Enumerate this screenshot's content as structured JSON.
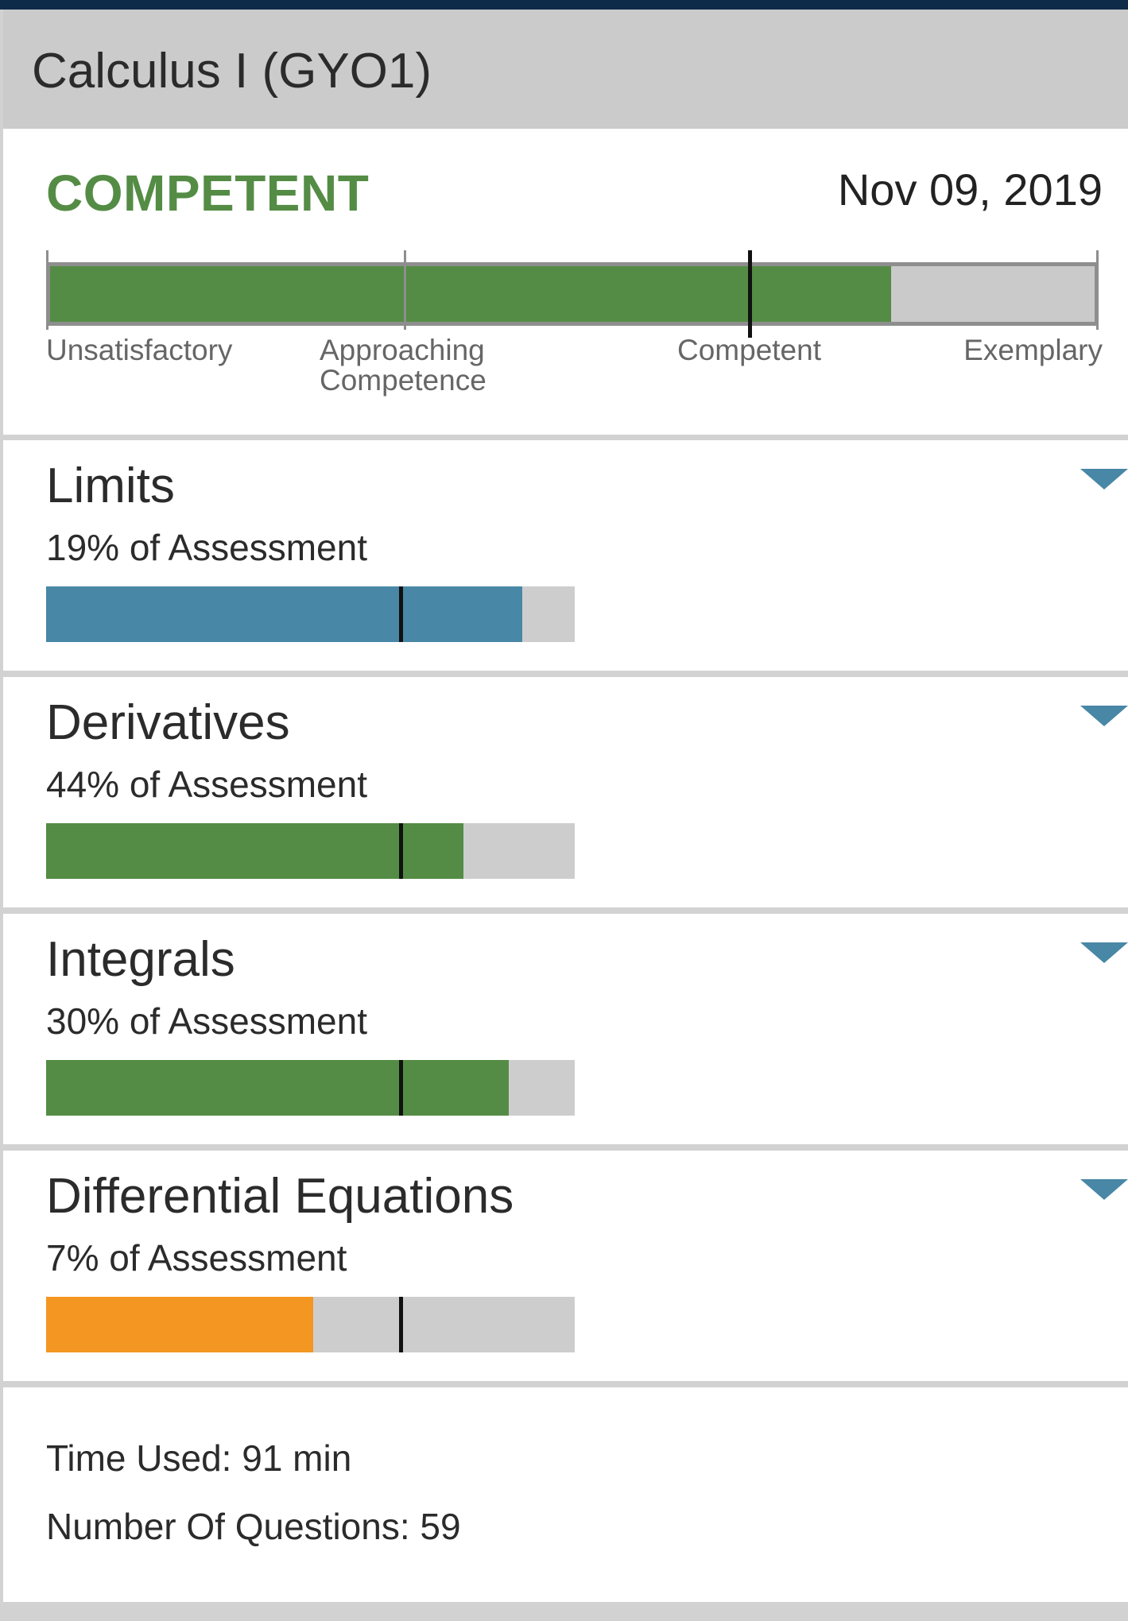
{
  "header": {
    "title": "Calculus I (GYO1)"
  },
  "summary": {
    "status": "COMPETENT",
    "date": "Nov 09, 2019",
    "status_color": "#548c45",
    "overall_score_fraction": 0.805,
    "competent_marker_fraction": 0.67,
    "scale_labels": {
      "unsatisfactory": "Unsatisfactory",
      "approaching": "Approaching Competence",
      "competent": "Competent",
      "exemplary": "Exemplary"
    }
  },
  "sections": [
    {
      "title": "Limits",
      "percent_label": "19% of Assessment",
      "score_fraction": 0.9,
      "bar_color": "#4887a6",
      "expand_icon": "chevron-down-icon"
    },
    {
      "title": "Derivatives",
      "percent_label": "44% of Assessment",
      "score_fraction": 0.79,
      "bar_color": "#548c45",
      "expand_icon": "chevron-down-icon"
    },
    {
      "title": "Integrals",
      "percent_label": "30% of Assessment",
      "score_fraction": 0.875,
      "bar_color": "#548c45",
      "expand_icon": "chevron-down-icon"
    },
    {
      "title": "Differential Equations",
      "percent_label": "7% of Assessment",
      "score_fraction": 0.505,
      "bar_color": "#f39622",
      "expand_icon": "chevron-down-icon"
    }
  ],
  "section_marker_fraction": 0.67,
  "footer": {
    "time_used": "Time Used: 91 min",
    "num_questions": "Number Of Questions: 59"
  }
}
